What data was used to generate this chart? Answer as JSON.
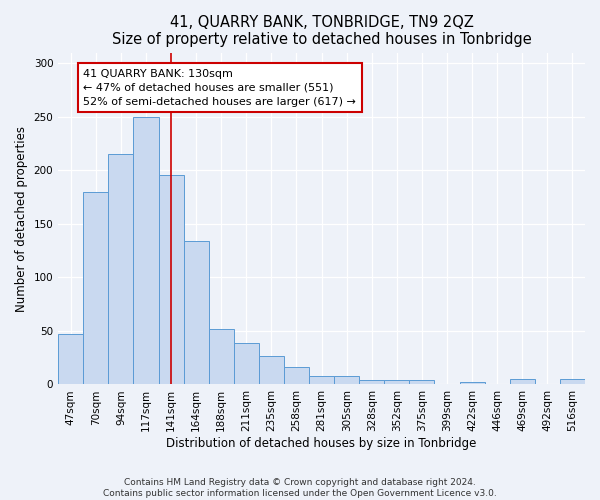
{
  "title": "41, QUARRY BANK, TONBRIDGE, TN9 2QZ",
  "subtitle": "Size of property relative to detached houses in Tonbridge",
  "xlabel": "Distribution of detached houses by size in Tonbridge",
  "ylabel": "Number of detached properties",
  "bar_labels": [
    "47sqm",
    "70sqm",
    "94sqm",
    "117sqm",
    "141sqm",
    "164sqm",
    "188sqm",
    "211sqm",
    "235sqm",
    "258sqm",
    "281sqm",
    "305sqm",
    "328sqm",
    "352sqm",
    "375sqm",
    "399sqm",
    "422sqm",
    "446sqm",
    "469sqm",
    "492sqm",
    "516sqm"
  ],
  "bar_values": [
    47,
    180,
    215,
    250,
    196,
    134,
    52,
    39,
    27,
    16,
    8,
    8,
    4,
    4,
    4,
    0,
    2,
    0,
    5,
    0,
    5
  ],
  "bar_color": "#c9d9f0",
  "bar_edge_color": "#5b9bd5",
  "vline_x": 4.0,
  "vline_color": "#cc0000",
  "annotation_text": "41 QUARRY BANK: 130sqm\n← 47% of detached houses are smaller (551)\n52% of semi-detached houses are larger (617) →",
  "annotation_box_color": "#ffffff",
  "annotation_box_edge": "#cc0000",
  "ylim": [
    0,
    310
  ],
  "yticks": [
    0,
    50,
    100,
    150,
    200,
    250,
    300
  ],
  "footer_line1": "Contains HM Land Registry data © Crown copyright and database right 2024.",
  "footer_line2": "Contains public sector information licensed under the Open Government Licence v3.0.",
  "bg_color": "#eef2f9",
  "grid_color": "#ffffff",
  "title_fontsize": 10.5,
  "subtitle_fontsize": 9.5,
  "axis_label_fontsize": 8.5,
  "tick_fontsize": 7.5,
  "footer_fontsize": 6.5
}
